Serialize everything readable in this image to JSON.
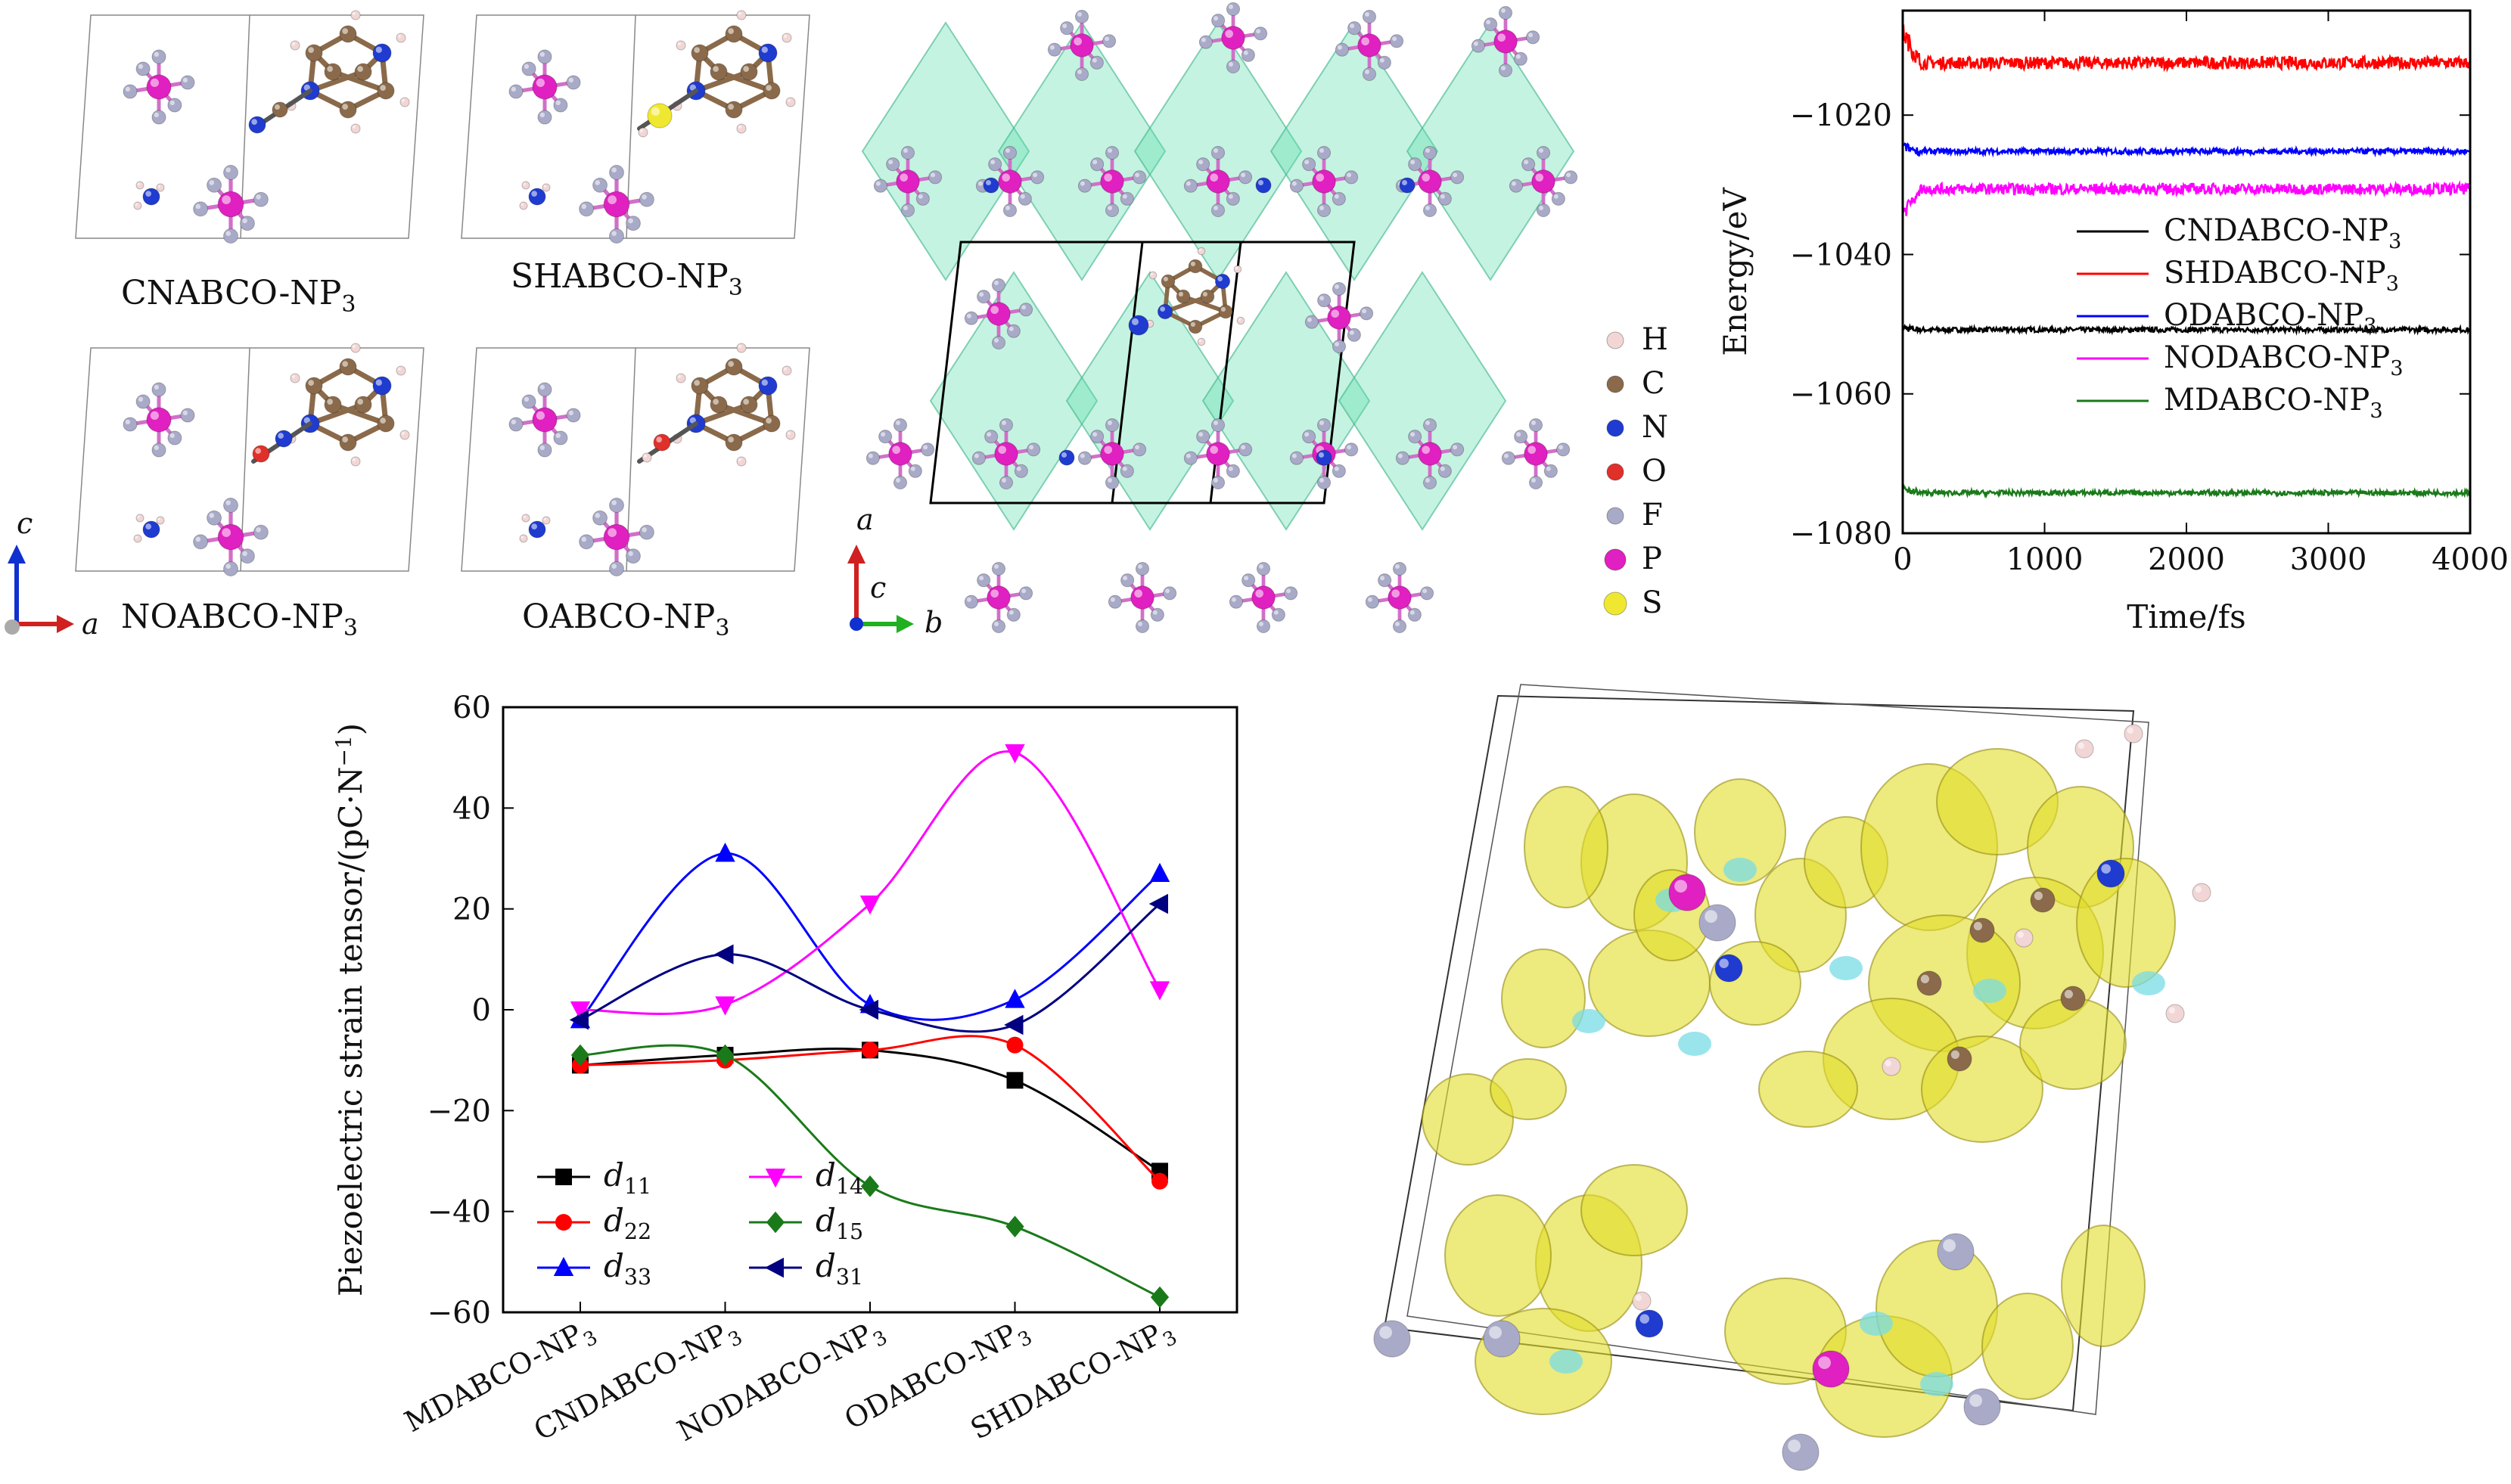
{
  "structures": {
    "panels": [
      {
        "id": "cn",
        "name": "CNABCO-NP",
        "sub": "3",
        "linker": "#1f3bb0"
      },
      {
        "id": "sh",
        "name": "SHABCO-NP",
        "sub": "3",
        "linker": "#e8e030"
      },
      {
        "id": "no",
        "name": "NOABCO-NP",
        "sub": "3",
        "linker": "#d22a20"
      },
      {
        "id": "o",
        "name": "OABCO-NP",
        "sub": "3",
        "linker": "#d22a20"
      }
    ],
    "axes_small": {
      "c": "c",
      "a": "a"
    },
    "axes_large": {
      "a": "a",
      "c": "c",
      "b": "b"
    }
  },
  "element_legend": [
    {
      "symbol": "H",
      "color": "#f2d6d6"
    },
    {
      "symbol": "C",
      "color": "#8a6a4a"
    },
    {
      "symbol": "N",
      "color": "#1f3bd0"
    },
    {
      "symbol": "O",
      "color": "#e0302a"
    },
    {
      "symbol": "F",
      "color": "#a8aac8"
    },
    {
      "symbol": "P",
      "color": "#e020c0"
    },
    {
      "symbol": "S",
      "color": "#f0e830"
    }
  ],
  "energy_chart": {
    "chart_data": {
      "type": "line",
      "xlabel": "Time/fs",
      "ylabel": "Energy/eV",
      "xlim": [
        0,
        4000
      ],
      "ylim": [
        -1080,
        -1005
      ],
      "xticks": [
        0,
        1000,
        2000,
        3000,
        4000
      ],
      "yticks": [
        -1020,
        -1040,
        -1060,
        -1080
      ],
      "ytick_labels": [
        "−1020",
        "−1040",
        "−1060",
        "−1080"
      ],
      "series": [
        {
          "name": "CNDABCO-NP",
          "sub": "3",
          "color": "#000000",
          "mean": -1050.8,
          "start": -1050.5,
          "noise": 0.35
        },
        {
          "name": "SHDABCO-NP",
          "sub": "3",
          "color": "#ff0000",
          "mean": -1012.5,
          "start": -1008,
          "noise": 0.9
        },
        {
          "name": "ODABCO-NP",
          "sub": "3",
          "color": "#0000ff",
          "mean": -1025.2,
          "start": -1024.5,
          "noise": 0.4
        },
        {
          "name": "NODABCO-NP",
          "sub": "3",
          "color": "#ff00ff",
          "mean": -1030.6,
          "start": -1034,
          "noise": 0.8
        },
        {
          "name": "MDABCO-NP",
          "sub": "3",
          "color": "#1a7a1a",
          "mean": -1074.2,
          "start": -1073.5,
          "noise": 0.35
        }
      ]
    }
  },
  "piezo_chart": {
    "chart_data": {
      "type": "line",
      "ylabel": "Piezoelectric strain tensor/(pC·N",
      "ylabel_sup": "−1",
      "ylim": [
        -60,
        60
      ],
      "yticks": [
        60,
        40,
        20,
        0,
        -20,
        -40,
        -60
      ],
      "ytick_labels": [
        "60",
        "40",
        "20",
        "0",
        "−20",
        "−40",
        "−60"
      ],
      "categories": [
        "MDABCO-NP",
        "CNDABCO-NP",
        "NODABCO-NP",
        "ODABCO-NP",
        "SHDABCO-NP"
      ],
      "category_sub": "3",
      "series": [
        {
          "name": "d",
          "sub": "11",
          "color": "#000000",
          "marker": "square",
          "values": [
            -11,
            -9,
            -8,
            -14,
            -32
          ]
        },
        {
          "name": "d",
          "sub": "22",
          "color": "#ff0000",
          "marker": "circle",
          "values": [
            -11,
            -10,
            -8,
            -7,
            -34
          ]
        },
        {
          "name": "d",
          "sub": "33",
          "color": "#0000ff",
          "marker": "triangle-up",
          "values": [
            -2,
            31,
            1,
            2,
            27
          ]
        },
        {
          "name": "d",
          "sub": "14",
          "color": "#ff00ff",
          "marker": "triangle-down",
          "values": [
            0,
            1,
            21,
            51,
            4
          ]
        },
        {
          "name": "d",
          "sub": "15",
          "color": "#1a7a1a",
          "marker": "diamond",
          "values": [
            -9,
            -9,
            -35,
            -43,
            -57
          ]
        },
        {
          "name": "d",
          "sub": "31",
          "color": "#000080",
          "marker": "triangle-left",
          "values": [
            -2,
            11,
            0,
            -3,
            21
          ]
        }
      ]
    }
  }
}
